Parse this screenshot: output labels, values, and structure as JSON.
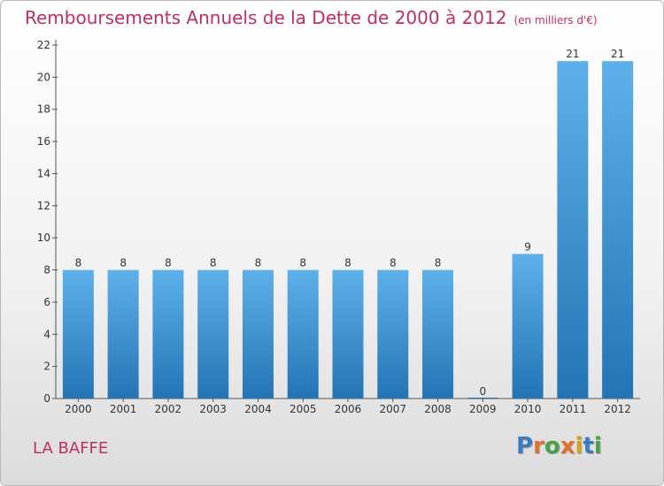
{
  "title": "Remboursements Annuels de la Dette de 2000 à 2012",
  "unit_note": "(en milliers d'€)",
  "commune": "LA BAFFE",
  "logo": {
    "text": "Proxiti",
    "letter_colors": [
      "#3b7bbf",
      "#e0702a",
      "#4aa04a",
      "#e0702a",
      "#d4a017",
      "#3b7bbf",
      "#4aa04a"
    ]
  },
  "colors": {
    "bar_top": "#5eb0ea",
    "bar_bottom": "#2474b4",
    "title": "#c0305e"
  },
  "chart_data": {
    "type": "bar",
    "categories": [
      "2000",
      "2001",
      "2002",
      "2003",
      "2004",
      "2005",
      "2006",
      "2007",
      "2008",
      "2009",
      "2010",
      "2011",
      "2012"
    ],
    "values": [
      8,
      8,
      8,
      8,
      8,
      8,
      8,
      8,
      8,
      0,
      9,
      21,
      21
    ],
    "ylim": [
      0,
      22
    ],
    "yticks": [
      0,
      2,
      4,
      6,
      8,
      10,
      12,
      14,
      16,
      18,
      20,
      22
    ],
    "grid": false
  }
}
